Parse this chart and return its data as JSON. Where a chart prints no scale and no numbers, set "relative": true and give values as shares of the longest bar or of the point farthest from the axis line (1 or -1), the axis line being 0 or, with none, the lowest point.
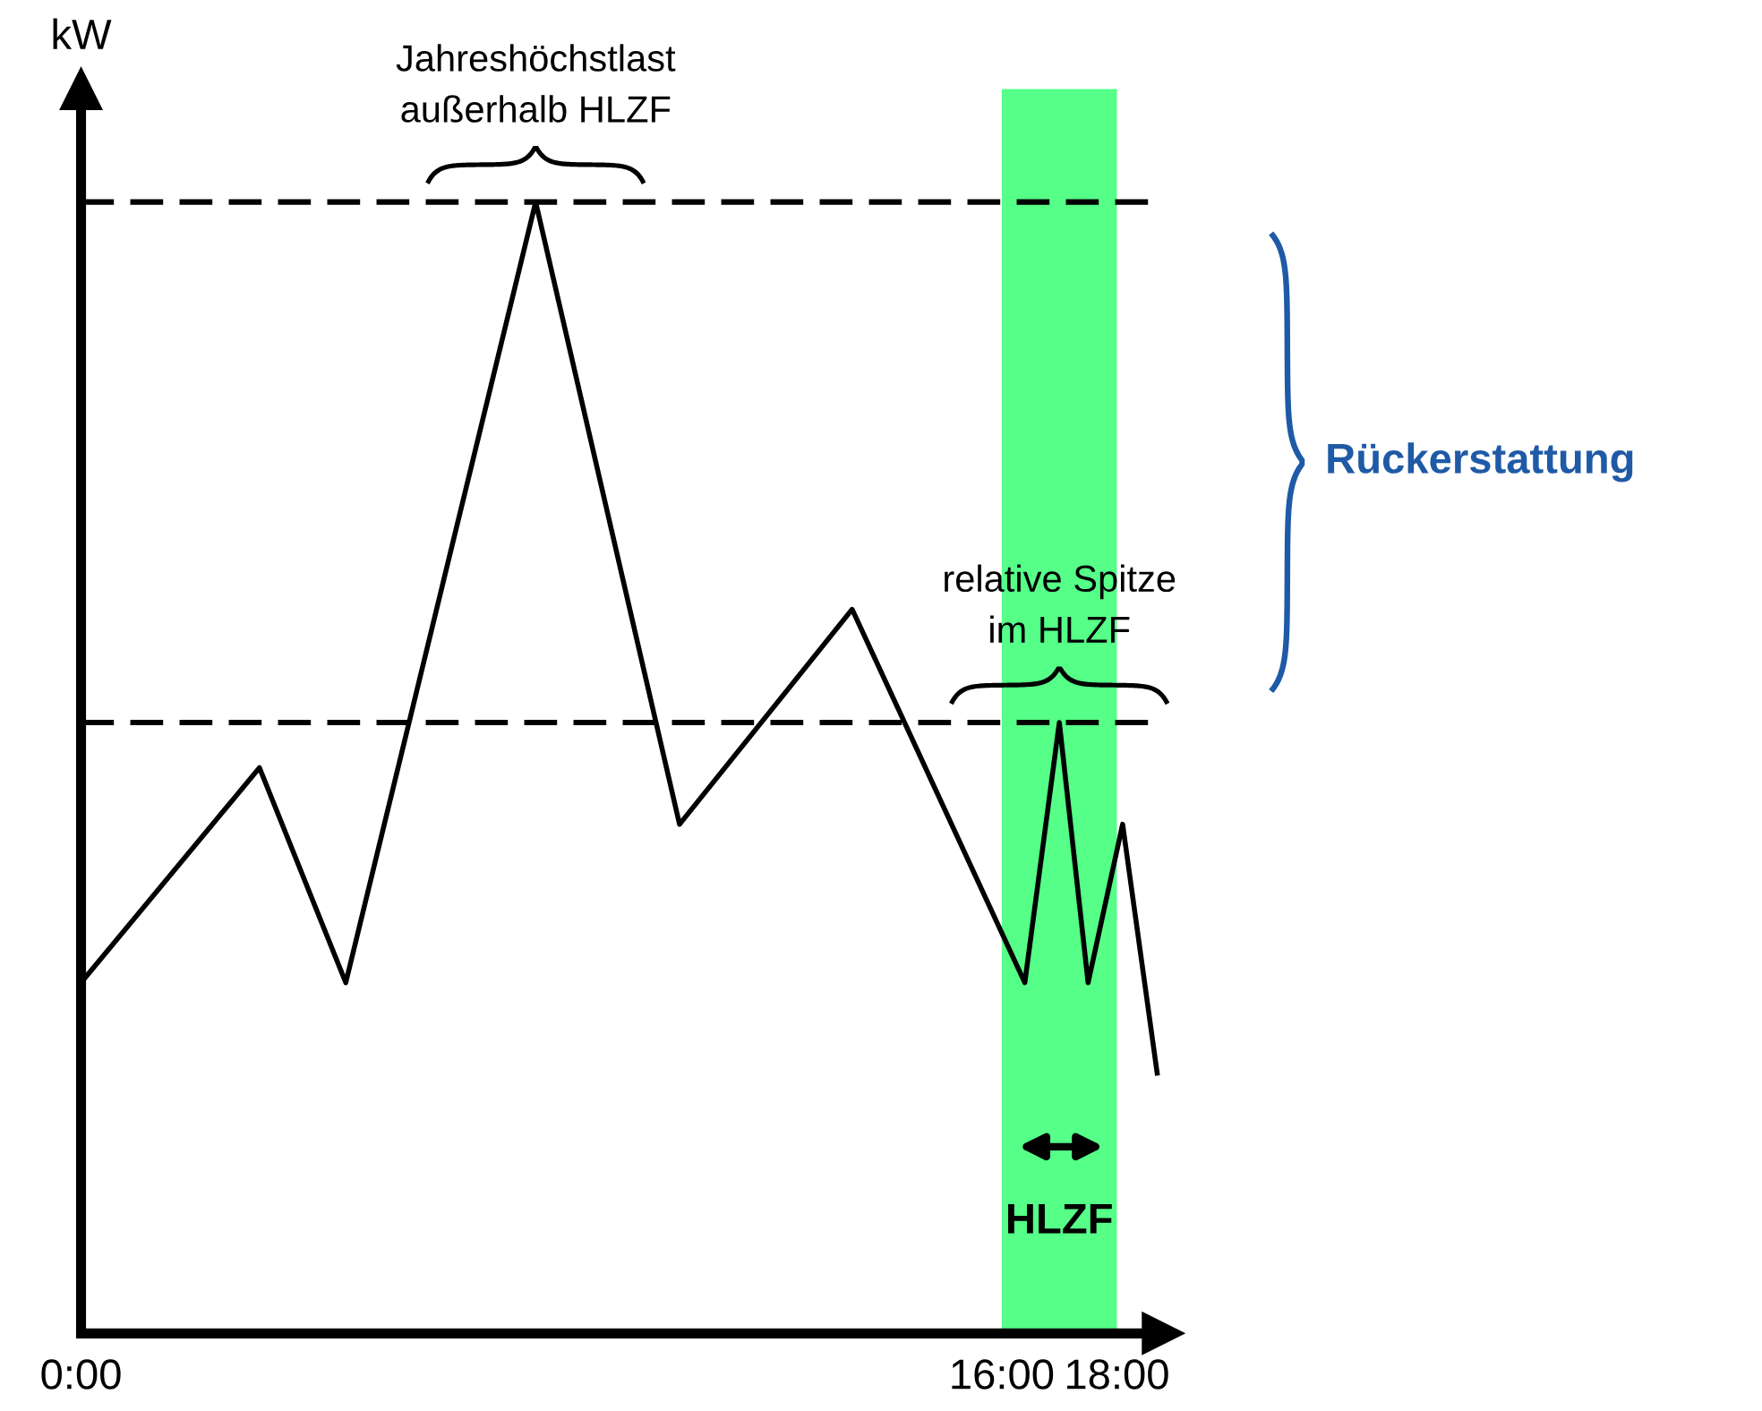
{
  "chart_data": {
    "type": "line",
    "relative": true,
    "ylabel": "kW",
    "xlim": [
      0,
      18.8
    ],
    "xticks": [
      {
        "value": 0,
        "label": "0:00"
      },
      {
        "value": 16,
        "label": "16:00"
      },
      {
        "value": 18,
        "label": "18:00"
      }
    ],
    "series": [
      {
        "color": "#000000",
        "x": [
          0,
          3.1,
          4.6,
          7.9,
          10.4,
          13.4,
          16.4,
          17.0,
          17.5,
          18.1,
          18.7
        ],
        "values": [
          0.31,
          0.5,
          0.31,
          1,
          0.45,
          0.64,
          0.31,
          0.54,
          0.31,
          0.45,
          0.23
        ]
      }
    ],
    "ref_lines": [
      {
        "axis": "y",
        "value": 1,
        "line_style": "dashed",
        "color": "#000000"
      },
      {
        "axis": "y",
        "value": 0.54,
        "line_style": "dashed",
        "color": "#000000"
      }
    ],
    "bands": [
      {
        "axis": "x",
        "from": 16,
        "to": 18,
        "label": "HLZF",
        "color": "#55ff88"
      }
    ],
    "annotations": [
      {
        "text": "Jahreshöchstlast\naußerhalb HLZF",
        "x": 7.9,
        "y": 1
      },
      {
        "text": "relative Spitze\nim HLZF",
        "x": 17.0,
        "y": 0.54
      },
      "Rückerstattung"
    ],
    "grid": false,
    "legend": false,
    "marker": "none",
    "line_style": "solid"
  }
}
